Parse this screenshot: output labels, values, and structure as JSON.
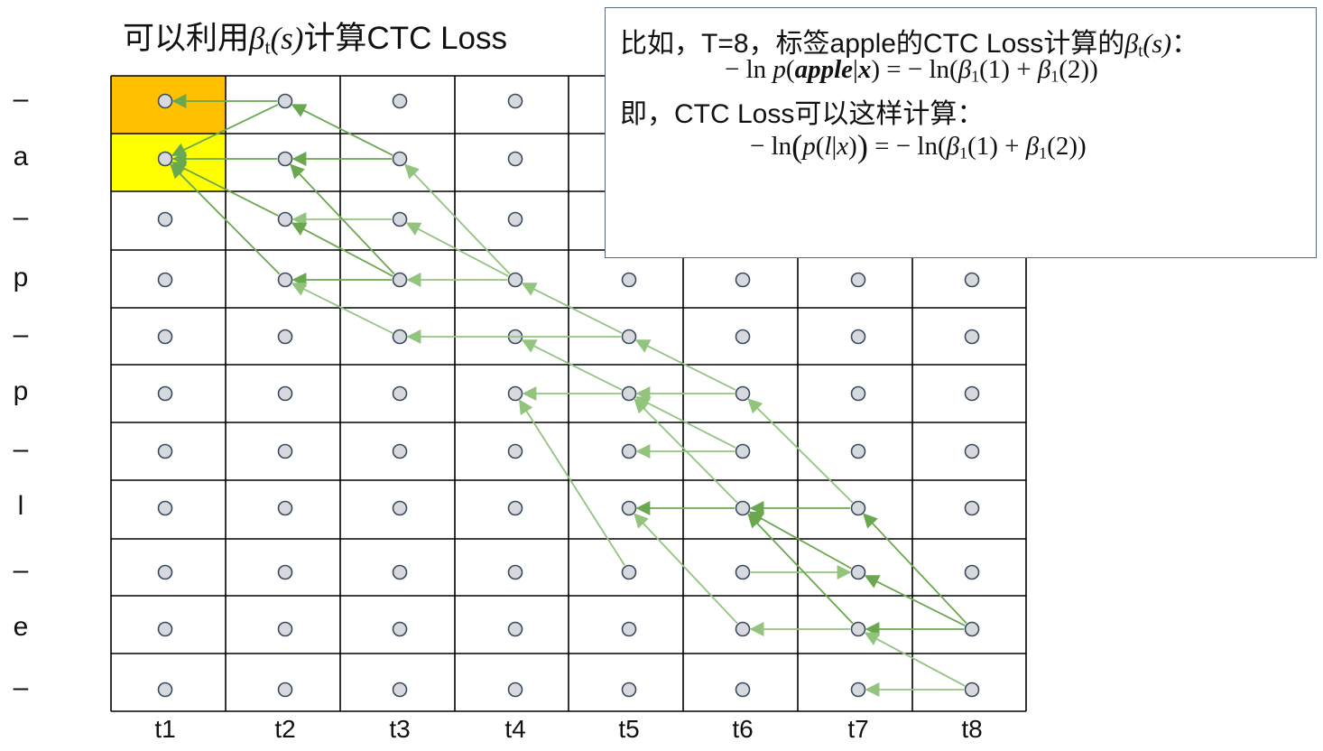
{
  "title": {
    "prefix": "可以利用",
    "symbol": "β",
    "subscript": "t",
    "arg": "(s)",
    "suffix": "计算CTC Loss"
  },
  "row_labels": [
    "–",
    "a",
    "–",
    "p",
    "–",
    "p",
    "–",
    "l",
    "–",
    "e",
    "–"
  ],
  "col_labels": [
    "t1",
    "t2",
    "t3",
    "t4",
    "t5",
    "t6",
    "t7",
    "t8"
  ],
  "highlight_colors": {
    "row0": "#ffc000",
    "row1": "#ffff00"
  },
  "arrow_colors": {
    "dark": "#6aa84f",
    "light": "#93c47d"
  },
  "info": {
    "line1_text": "比如，T=8，标签apple的CTC Loss计算的",
    "line1_symbol": "β",
    "line1_sub": "t",
    "line1_arg": "(s)",
    "line1_end": "：",
    "eq1_left": "− ln ",
    "eq1_p": "p",
    "eq1_open": "(",
    "eq1_word": "apple",
    "eq1_bar": "|",
    "eq1_x": "x",
    "eq1_close": ")",
    "eq1_right": " = − ln(",
    "eq1_b1": "β",
    "eq1_b1_sub": "1",
    "eq1_b1_arg": "(1) + ",
    "eq1_b2": "β",
    "eq1_b2_sub": "1",
    "eq1_b2_arg": "(2))",
    "line3": "即，CTC Loss可以这样计算：",
    "eq2_left": "− ln",
    "eq2_p": "p",
    "eq2_inner": "(",
    "eq2_l": "l",
    "eq2_bar": "|",
    "eq2_x": "x",
    "eq2_inner_close": ")",
    "eq2_right": " = − ln(",
    "eq2_b1": "β",
    "eq2_b1_sub": "1",
    "eq2_b1_arg": "(1) + ",
    "eq2_b2": "β",
    "eq2_b2_sub": "1",
    "eq2_b2_arg": "(2))"
  },
  "arrows": [
    {
      "from": [
        2,
        1
      ],
      "to": [
        1,
        1
      ],
      "tone": "dark"
    },
    {
      "from": [
        2,
        1
      ],
      "to": [
        1,
        2
      ],
      "tone": "dark"
    },
    {
      "from": [
        2,
        2
      ],
      "to": [
        1,
        2
      ],
      "tone": "dark"
    },
    {
      "from": [
        2,
        3
      ],
      "to": [
        1,
        2
      ],
      "tone": "dark"
    },
    {
      "from": [
        2,
        4
      ],
      "to": [
        1,
        2
      ],
      "tone": "dark"
    },
    {
      "from": [
        3,
        2
      ],
      "to": [
        2,
        1
      ],
      "tone": "dark"
    },
    {
      "from": [
        3,
        2
      ],
      "to": [
        2,
        2
      ],
      "tone": "dark"
    },
    {
      "from": [
        3,
        3
      ],
      "to": [
        2,
        3
      ],
      "tone": "light"
    },
    {
      "from": [
        3,
        4
      ],
      "to": [
        2,
        2
      ],
      "tone": "dark"
    },
    {
      "from": [
        3,
        4
      ],
      "to": [
        2,
        3
      ],
      "tone": "dark"
    },
    {
      "from": [
        3,
        4
      ],
      "to": [
        2,
        4
      ],
      "tone": "dark"
    },
    {
      "from": [
        3,
        5
      ],
      "to": [
        2,
        4
      ],
      "tone": "light"
    },
    {
      "from": [
        4,
        4
      ],
      "to": [
        3,
        2
      ],
      "tone": "light"
    },
    {
      "from": [
        4,
        4
      ],
      "to": [
        3,
        3
      ],
      "tone": "light"
    },
    {
      "from": [
        4,
        4
      ],
      "to": [
        3,
        4
      ],
      "tone": "light"
    },
    {
      "from": [
        5,
        5
      ],
      "to": [
        4,
        4
      ],
      "tone": "light"
    },
    {
      "from": [
        5,
        5
      ],
      "to": [
        3,
        5
      ],
      "tone": "light"
    },
    {
      "from": [
        5,
        6
      ],
      "to": [
        4,
        6
      ],
      "tone": "light"
    },
    {
      "from": [
        5,
        6
      ],
      "to": [
        4,
        5
      ],
      "tone": "light"
    },
    {
      "from": [
        5,
        9
      ],
      "to": [
        4,
        6
      ],
      "tone": "light"
    },
    {
      "from": [
        6,
        6
      ],
      "to": [
        5,
        5
      ],
      "tone": "light"
    },
    {
      "from": [
        6,
        6
      ],
      "to": [
        5,
        6
      ],
      "tone": "light"
    },
    {
      "from": [
        6,
        7
      ],
      "to": [
        5,
        7
      ],
      "tone": "light"
    },
    {
      "from": [
        6,
        7
      ],
      "to": [
        5,
        6
      ],
      "tone": "light"
    },
    {
      "from": [
        6,
        8
      ],
      "to": [
        5,
        8
      ],
      "tone": "dark"
    },
    {
      "from": [
        6,
        8
      ],
      "to": [
        5,
        6
      ],
      "tone": "light"
    },
    {
      "from": [
        6,
        10
      ],
      "to": [
        5,
        8
      ],
      "tone": "light"
    },
    {
      "from": [
        7,
        8
      ],
      "to": [
        6,
        8
      ],
      "tone": "dark"
    },
    {
      "from": [
        7,
        8
      ],
      "to": [
        6,
        6
      ],
      "tone": "light"
    },
    {
      "from": [
        6,
        9
      ],
      "to": [
        7,
        9
      ],
      "tone": "light"
    },
    {
      "from": [
        7,
        10
      ],
      "to": [
        6,
        8
      ],
      "tone": "dark"
    },
    {
      "from": [
        7,
        10
      ],
      "to": [
        6,
        10
      ],
      "tone": "light"
    },
    {
      "from": [
        7,
        9
      ],
      "to": [
        6,
        8
      ],
      "tone": "dark"
    },
    {
      "from": [
        8,
        10
      ],
      "to": [
        7,
        10
      ],
      "tone": "dark"
    },
    {
      "from": [
        8,
        10
      ],
      "to": [
        7,
        8
      ],
      "tone": "dark"
    },
    {
      "from": [
        8,
        10
      ],
      "to": [
        7,
        9
      ],
      "tone": "dark"
    },
    {
      "from": [
        8,
        11
      ],
      "to": [
        7,
        11
      ],
      "tone": "light"
    },
    {
      "from": [
        8,
        11
      ],
      "to": [
        7,
        10
      ],
      "tone": "light"
    }
  ]
}
